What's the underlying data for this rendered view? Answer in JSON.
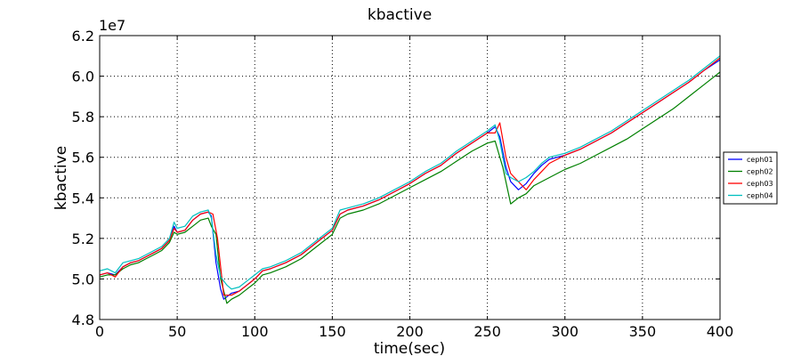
{
  "chart_data": {
    "type": "line",
    "title": "kbactive",
    "xlabel": "time(sec)",
    "ylabel": "kbactive",
    "y_offset_label": "1e7",
    "xlim": [
      0,
      400
    ],
    "ylim": [
      4.8,
      6.2
    ],
    "y_unit_scale": "1e7",
    "grid": true,
    "legend_position": "right",
    "x_ticks": [
      0,
      50,
      100,
      150,
      200,
      250,
      300,
      350,
      400
    ],
    "x_tick_labels": [
      "0",
      "50",
      "100",
      "150",
      "200",
      "250",
      "300",
      "350",
      "400"
    ],
    "y_ticks": [
      4.8,
      5.0,
      5.2,
      5.4,
      5.6,
      5.8,
      6.0,
      6.2
    ],
    "y_tick_labels": [
      "4.8",
      "5.0",
      "5.2",
      "5.4",
      "5.6",
      "5.8",
      "6.0",
      "6.2"
    ],
    "series": [
      {
        "name": "ceph01",
        "color": "#0000ff",
        "points": [
          [
            0,
            5.02
          ],
          [
            5,
            5.03
          ],
          [
            10,
            5.02
          ],
          [
            15,
            5.06
          ],
          [
            20,
            5.08
          ],
          [
            25,
            5.09
          ],
          [
            30,
            5.11
          ],
          [
            35,
            5.13
          ],
          [
            40,
            5.15
          ],
          [
            45,
            5.19
          ],
          [
            48,
            5.26
          ],
          [
            50,
            5.23
          ],
          [
            55,
            5.24
          ],
          [
            60,
            5.29
          ],
          [
            65,
            5.32
          ],
          [
            70,
            5.33
          ],
          [
            72,
            5.31
          ],
          [
            75,
            5.08
          ],
          [
            78,
            4.95
          ],
          [
            80,
            4.9
          ],
          [
            85,
            4.93
          ],
          [
            90,
            4.94
          ],
          [
            95,
            4.97
          ],
          [
            100,
            5.0
          ],
          [
            105,
            5.04
          ],
          [
            110,
            5.05
          ],
          [
            120,
            5.08
          ],
          [
            130,
            5.12
          ],
          [
            140,
            5.18
          ],
          [
            150,
            5.24
          ],
          [
            155,
            5.32
          ],
          [
            160,
            5.34
          ],
          [
            170,
            5.36
          ],
          [
            180,
            5.39
          ],
          [
            190,
            5.43
          ],
          [
            200,
            5.47
          ],
          [
            210,
            5.52
          ],
          [
            220,
            5.56
          ],
          [
            230,
            5.62
          ],
          [
            240,
            5.67
          ],
          [
            250,
            5.72
          ],
          [
            255,
            5.75
          ],
          [
            258,
            5.7
          ],
          [
            262,
            5.55
          ],
          [
            265,
            5.48
          ],
          [
            270,
            5.44
          ],
          [
            275,
            5.47
          ],
          [
            280,
            5.52
          ],
          [
            285,
            5.56
          ],
          [
            290,
            5.59
          ],
          [
            295,
            5.6
          ],
          [
            300,
            5.61
          ],
          [
            310,
            5.64
          ],
          [
            320,
            5.68
          ],
          [
            330,
            5.72
          ],
          [
            340,
            5.77
          ],
          [
            350,
            5.82
          ],
          [
            360,
            5.87
          ],
          [
            370,
            5.92
          ],
          [
            380,
            5.97
          ],
          [
            390,
            6.03
          ],
          [
            400,
            6.08
          ]
        ]
      },
      {
        "name": "ceph02",
        "color": "#008000",
        "points": [
          [
            0,
            5.01
          ],
          [
            5,
            5.02
          ],
          [
            10,
            5.02
          ],
          [
            15,
            5.05
          ],
          [
            20,
            5.07
          ],
          [
            25,
            5.08
          ],
          [
            30,
            5.1
          ],
          [
            35,
            5.12
          ],
          [
            40,
            5.14
          ],
          [
            45,
            5.18
          ],
          [
            48,
            5.23
          ],
          [
            50,
            5.22
          ],
          [
            55,
            5.23
          ],
          [
            60,
            5.26
          ],
          [
            65,
            5.29
          ],
          [
            70,
            5.3
          ],
          [
            72,
            5.26
          ],
          [
            75,
            5.22
          ],
          [
            78,
            5.0
          ],
          [
            82,
            4.88
          ],
          [
            85,
            4.9
          ],
          [
            90,
            4.92
          ],
          [
            95,
            4.95
          ],
          [
            100,
            4.98
          ],
          [
            105,
            5.02
          ],
          [
            110,
            5.03
          ],
          [
            120,
            5.06
          ],
          [
            130,
            5.1
          ],
          [
            140,
            5.16
          ],
          [
            150,
            5.22
          ],
          [
            155,
            5.3
          ],
          [
            160,
            5.32
          ],
          [
            170,
            5.34
          ],
          [
            180,
            5.37
          ],
          [
            190,
            5.41
          ],
          [
            200,
            5.45
          ],
          [
            210,
            5.49
          ],
          [
            220,
            5.53
          ],
          [
            230,
            5.58
          ],
          [
            240,
            5.63
          ],
          [
            250,
            5.67
          ],
          [
            255,
            5.68
          ],
          [
            260,
            5.55
          ],
          [
            265,
            5.37
          ],
          [
            270,
            5.4
          ],
          [
            275,
            5.42
          ],
          [
            280,
            5.46
          ],
          [
            290,
            5.5
          ],
          [
            300,
            5.54
          ],
          [
            310,
            5.57
          ],
          [
            320,
            5.61
          ],
          [
            330,
            5.65
          ],
          [
            340,
            5.69
          ],
          [
            350,
            5.74
          ],
          [
            360,
            5.79
          ],
          [
            370,
            5.84
          ],
          [
            380,
            5.9
          ],
          [
            390,
            5.96
          ],
          [
            400,
            6.02
          ]
        ]
      },
      {
        "name": "ceph03",
        "color": "#ff0000",
        "points": [
          [
            0,
            5.02
          ],
          [
            5,
            5.03
          ],
          [
            10,
            5.01
          ],
          [
            15,
            5.06
          ],
          [
            20,
            5.08
          ],
          [
            25,
            5.09
          ],
          [
            30,
            5.11
          ],
          [
            35,
            5.13
          ],
          [
            40,
            5.15
          ],
          [
            45,
            5.19
          ],
          [
            48,
            5.25
          ],
          [
            50,
            5.23
          ],
          [
            55,
            5.24
          ],
          [
            60,
            5.29
          ],
          [
            65,
            5.32
          ],
          [
            70,
            5.33
          ],
          [
            73,
            5.32
          ],
          [
            76,
            5.2
          ],
          [
            80,
            4.92
          ],
          [
            85,
            4.92
          ],
          [
            90,
            4.94
          ],
          [
            95,
            4.97
          ],
          [
            100,
            5.0
          ],
          [
            105,
            5.04
          ],
          [
            110,
            5.05
          ],
          [
            120,
            5.08
          ],
          [
            130,
            5.12
          ],
          [
            140,
            5.18
          ],
          [
            150,
            5.24
          ],
          [
            155,
            5.32
          ],
          [
            160,
            5.34
          ],
          [
            170,
            5.36
          ],
          [
            180,
            5.39
          ],
          [
            190,
            5.43
          ],
          [
            200,
            5.47
          ],
          [
            210,
            5.52
          ],
          [
            220,
            5.56
          ],
          [
            230,
            5.62
          ],
          [
            240,
            5.67
          ],
          [
            250,
            5.72
          ],
          [
            255,
            5.72
          ],
          [
            258,
            5.77
          ],
          [
            262,
            5.6
          ],
          [
            265,
            5.52
          ],
          [
            270,
            5.48
          ],
          [
            275,
            5.44
          ],
          [
            280,
            5.49
          ],
          [
            285,
            5.53
          ],
          [
            290,
            5.57
          ],
          [
            295,
            5.59
          ],
          [
            300,
            5.61
          ],
          [
            310,
            5.64
          ],
          [
            320,
            5.68
          ],
          [
            330,
            5.72
          ],
          [
            340,
            5.77
          ],
          [
            350,
            5.82
          ],
          [
            360,
            5.87
          ],
          [
            370,
            5.92
          ],
          [
            380,
            5.97
          ],
          [
            390,
            6.03
          ],
          [
            400,
            6.09
          ]
        ]
      },
      {
        "name": "ceph04",
        "color": "#00bfbf",
        "points": [
          [
            0,
            5.04
          ],
          [
            5,
            5.05
          ],
          [
            10,
            5.03
          ],
          [
            15,
            5.08
          ],
          [
            20,
            5.09
          ],
          [
            25,
            5.1
          ],
          [
            30,
            5.12
          ],
          [
            35,
            5.14
          ],
          [
            40,
            5.16
          ],
          [
            45,
            5.2
          ],
          [
            48,
            5.28
          ],
          [
            50,
            5.25
          ],
          [
            55,
            5.26
          ],
          [
            60,
            5.31
          ],
          [
            65,
            5.33
          ],
          [
            70,
            5.34
          ],
          [
            72,
            5.3
          ],
          [
            75,
            5.12
          ],
          [
            78,
            5.01
          ],
          [
            82,
            4.97
          ],
          [
            85,
            4.95
          ],
          [
            90,
            4.96
          ],
          [
            95,
            4.99
          ],
          [
            100,
            5.02
          ],
          [
            105,
            5.05
          ],
          [
            110,
            5.06
          ],
          [
            120,
            5.09
          ],
          [
            130,
            5.13
          ],
          [
            140,
            5.19
          ],
          [
            150,
            5.25
          ],
          [
            155,
            5.34
          ],
          [
            160,
            5.35
          ],
          [
            170,
            5.37
          ],
          [
            180,
            5.4
          ],
          [
            190,
            5.44
          ],
          [
            200,
            5.48
          ],
          [
            210,
            5.53
          ],
          [
            220,
            5.57
          ],
          [
            230,
            5.63
          ],
          [
            240,
            5.68
          ],
          [
            250,
            5.73
          ],
          [
            255,
            5.76
          ],
          [
            258,
            5.68
          ],
          [
            262,
            5.52
          ],
          [
            265,
            5.5
          ],
          [
            270,
            5.48
          ],
          [
            275,
            5.5
          ],
          [
            280,
            5.53
          ],
          [
            285,
            5.57
          ],
          [
            290,
            5.6
          ],
          [
            295,
            5.61
          ],
          [
            300,
            5.62
          ],
          [
            310,
            5.65
          ],
          [
            320,
            5.69
          ],
          [
            330,
            5.73
          ],
          [
            340,
            5.78
          ],
          [
            350,
            5.83
          ],
          [
            360,
            5.88
          ],
          [
            370,
            5.93
          ],
          [
            380,
            5.98
          ],
          [
            390,
            6.04
          ],
          [
            400,
            6.1
          ]
        ]
      }
    ]
  }
}
